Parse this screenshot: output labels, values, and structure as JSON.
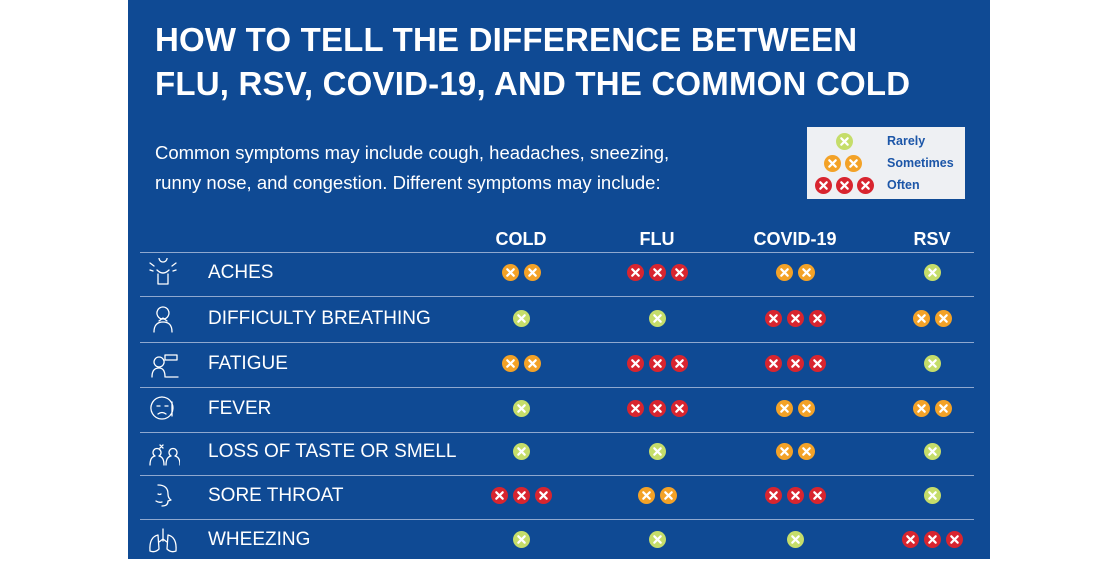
{
  "title": {
    "line1": "HOW TO TELL THE DIFFERENCE BETWEEN",
    "line2": "FLU, RSV, COVID-19, AND THE COMMON COLD"
  },
  "intro": {
    "line1": "Common symptoms may include cough, headaches, sneezing,",
    "line2": "runny nose, and congestion. Different symptoms may include:"
  },
  "legend": {
    "rarely": "Rarely",
    "sometimes": "Sometimes",
    "often": "Often"
  },
  "colors": {
    "background": "#0f4a94",
    "rarely": "#c5dd6a",
    "sometimes": "#f3a227",
    "often": "#d8252f",
    "legend_text": "#1c56a8"
  },
  "columns": [
    "COLD",
    "FLU",
    "COVID-19",
    "RSV"
  ],
  "symptoms": [
    {
      "name": "ACHES",
      "icon": "aches-icon",
      "levels": [
        2,
        3,
        2,
        1
      ]
    },
    {
      "name": "DIFFICULTY BREATHING",
      "icon": "breathing-icon",
      "levels": [
        1,
        1,
        3,
        2
      ]
    },
    {
      "name": "FATIGUE",
      "icon": "fatigue-icon",
      "levels": [
        2,
        3,
        3,
        1
      ]
    },
    {
      "name": "FEVER",
      "icon": "fever-icon",
      "levels": [
        1,
        3,
        2,
        2
      ]
    },
    {
      "name": "LOSS OF TASTE OR SMELL",
      "icon": "taste-smell-icon",
      "levels": [
        1,
        1,
        2,
        1
      ]
    },
    {
      "name": "SORE THROAT",
      "icon": "sore-throat-icon",
      "levels": [
        3,
        2,
        3,
        1
      ]
    },
    {
      "name": "WHEEZING",
      "icon": "lungs-icon",
      "levels": [
        1,
        1,
        1,
        3
      ]
    }
  ]
}
